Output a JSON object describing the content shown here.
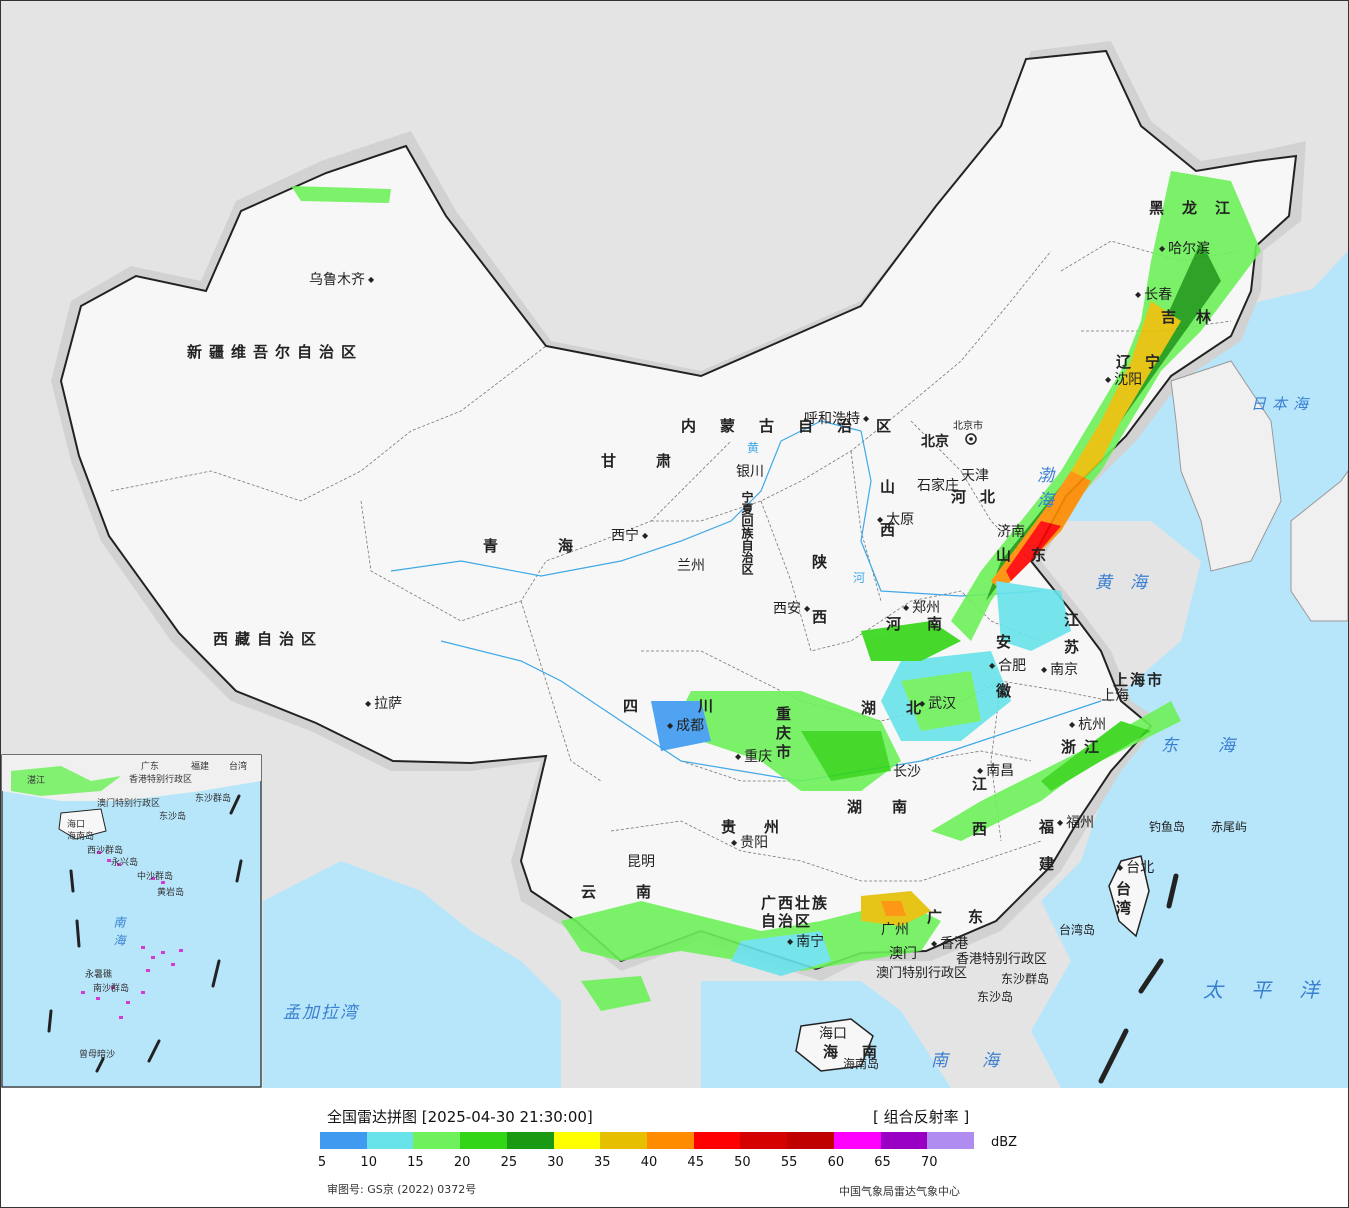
{
  "map": {
    "capital": "北京",
    "capital_text": "北京市",
    "regions": [
      {
        "name": "新疆维吾尔自治区",
        "key": "xinjiang"
      },
      {
        "name": "西藏自治区",
        "key": "xizang"
      },
      {
        "name": "青海",
        "key": "qinghai"
      },
      {
        "name": "甘肃",
        "key": "gansu"
      },
      {
        "name": "内蒙古自治区",
        "key": "neimenggu"
      },
      {
        "name": "黑龙江",
        "key": "heilongjiang"
      },
      {
        "name": "吉林",
        "key": "jilin"
      },
      {
        "name": "辽宁",
        "key": "liaoning"
      },
      {
        "name": "河北",
        "key": "hebei"
      },
      {
        "name": "山西",
        "key": "shanxi"
      },
      {
        "name": "山东",
        "key": "shandong"
      },
      {
        "name": "陕西",
        "key": "shaanxi"
      },
      {
        "name": "河南",
        "key": "henan"
      },
      {
        "name": "江苏",
        "key": "jiangsu"
      },
      {
        "name": "安徽",
        "key": "anhui"
      },
      {
        "name": "四川",
        "key": "sichuan"
      },
      {
        "name": "重庆市",
        "key": "chongqing"
      },
      {
        "name": "湖北",
        "key": "hubei"
      },
      {
        "name": "浙江",
        "key": "zhejiang"
      },
      {
        "name": "江西",
        "key": "jiangxi"
      },
      {
        "name": "湖南",
        "key": "hunan"
      },
      {
        "name": "贵州",
        "key": "guizhou"
      },
      {
        "name": "福建",
        "key": "fujian"
      },
      {
        "name": "云南",
        "key": "yunnan"
      },
      {
        "name": "广西壮族自治区",
        "key": "guangxi"
      },
      {
        "name": "广东",
        "key": "guangdong"
      },
      {
        "name": "海南",
        "key": "hainan"
      },
      {
        "name": "宁夏回族自治区",
        "key": "ningxia"
      },
      {
        "name": "上海市",
        "key": "shanghai"
      },
      {
        "name": "台湾",
        "key": "taiwan"
      },
      {
        "name": "天津",
        "key": "tianjin"
      },
      {
        "name": "香港特别行政区",
        "key": "hongkong_sar"
      },
      {
        "name": "澳门特别行政区",
        "key": "macau_sar"
      }
    ],
    "cities": [
      {
        "name": "乌鲁木齐",
        "key": "urumqi"
      },
      {
        "name": "拉萨",
        "key": "lhasa"
      },
      {
        "name": "西宁",
        "key": "xining"
      },
      {
        "name": "兰州",
        "key": "lanzhou"
      },
      {
        "name": "银川",
        "key": "yinchuan"
      },
      {
        "name": "呼和浩特",
        "key": "hohhot"
      },
      {
        "name": "哈尔滨",
        "key": "harbin"
      },
      {
        "name": "长春",
        "key": "changchun"
      },
      {
        "name": "沈阳",
        "key": "shenyang"
      },
      {
        "name": "石家庄",
        "key": "shijiazhuang"
      },
      {
        "name": "太原",
        "key": "taiyuan"
      },
      {
        "name": "济南",
        "key": "jinan"
      },
      {
        "name": "西安",
        "key": "xian"
      },
      {
        "name": "郑州",
        "key": "zhengzhou"
      },
      {
        "name": "合肥",
        "key": "hefei"
      },
      {
        "name": "南京",
        "key": "nanjing"
      },
      {
        "name": "上海",
        "key": "shanghai"
      },
      {
        "name": "杭州",
        "key": "hangzhou"
      },
      {
        "name": "成都",
        "key": "chengdu"
      },
      {
        "name": "重庆",
        "key": "chongqing"
      },
      {
        "name": "武汉",
        "key": "wuhan"
      },
      {
        "name": "长沙",
        "key": "changsha"
      },
      {
        "name": "南昌",
        "key": "nanchang"
      },
      {
        "name": "福州",
        "key": "fuzhou"
      },
      {
        "name": "台北",
        "key": "taipei"
      },
      {
        "name": "贵阳",
        "key": "guiyang"
      },
      {
        "name": "昆明",
        "key": "kunming"
      },
      {
        "name": "南宁",
        "key": "nanning"
      },
      {
        "name": "广州",
        "key": "guangzhou"
      },
      {
        "name": "香港",
        "key": "hongkong"
      },
      {
        "name": "澳门",
        "key": "macau"
      },
      {
        "name": "海口",
        "key": "haikou"
      }
    ],
    "seas": [
      {
        "name": "渤海",
        "key": "bohai"
      },
      {
        "name": "黄海",
        "key": "huanghai"
      },
      {
        "name": "东海",
        "key": "donghai"
      },
      {
        "name": "日本海",
        "key": "japan_sea"
      },
      {
        "name": "南海",
        "key": "nanhai"
      },
      {
        "name": "太平洋",
        "key": "pacific"
      },
      {
        "name": "孟加拉湾",
        "key": "bengal"
      }
    ],
    "islands": [
      {
        "name": "钓鱼岛",
        "key": "diaoyu"
      },
      {
        "name": "赤尾屿",
        "key": "chiwei"
      },
      {
        "name": "台湾岛",
        "key": "taiwan_island"
      },
      {
        "name": "东沙群岛",
        "key": "dongsha_islands"
      },
      {
        "name": "东沙岛",
        "key": "dongsha"
      },
      {
        "name": "海南岛",
        "key": "hainan_island"
      }
    ],
    "rivers": [
      {
        "name": "黄",
        "key": "huang"
      },
      {
        "name": "河",
        "key": "he"
      }
    ],
    "inset": {
      "labels": [
        "台湾",
        "东沙群岛",
        "东沙岛",
        "西沙群岛",
        "永兴岛",
        "中沙群岛",
        "黄岩岛",
        "南沙群岛",
        "永暑礁",
        "曾母暗沙",
        "海口",
        "海南岛",
        "香港特别行政区",
        "澳门特别行政区",
        "广东",
        "福建",
        "湛江"
      ],
      "sea": "南海"
    }
  },
  "legend": {
    "title": "全国雷达拼图 [2025-04-30 21:30:00]",
    "product": "[ 组合反射率 ]",
    "unit": "dBZ",
    "ticks": [
      "5",
      "10",
      "15",
      "20",
      "25",
      "30",
      "35",
      "40",
      "45",
      "50",
      "55",
      "60",
      "65",
      "70"
    ],
    "colors": [
      "#3f9af0",
      "#68e3ea",
      "#6ef15a",
      "#33d617",
      "#1a9a12",
      "#ffff00",
      "#e6c000",
      "#ff8c00",
      "#ff0000",
      "#d50000",
      "#c00000",
      "#ff00ff",
      "#9a00c4",
      "#b18cf0"
    ],
    "approval": "审图号: GS京 (2022) 0372号",
    "org": "中国气象局雷达气象中心"
  }
}
